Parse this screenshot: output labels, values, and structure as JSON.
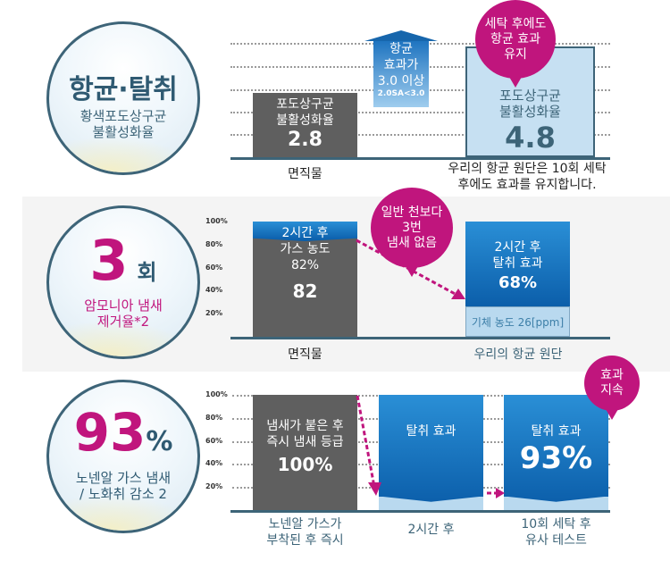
{
  "colors": {
    "accent": "#c0157d",
    "teal": "#3d6478",
    "gray_bar": "#5f5f5f",
    "blue_bar": "#1a7ac4",
    "light_blue": "#b9d9ef"
  },
  "sections": [
    {
      "circle": {
        "title": "항균·탈취",
        "subtitle_1": "황색포도상구균",
        "subtitle_2": "불활성화율"
      },
      "bubble": [
        "세탁 후에도",
        "항균 효과",
        "유지"
      ],
      "arrow": {
        "line1": "항균",
        "line2": "효과가",
        "line3": "3.0 이상",
        "line4": "2.0SA<3.0"
      },
      "caption_1": "우리의 항균 원단은 10회 세탁",
      "caption_2": "후에도 효과를 유지합니다."
    },
    {
      "circle": {
        "number": "3",
        "unit": "회",
        "subtitle_1": "암모니아 냄새",
        "subtitle_2": "제거율*2"
      },
      "bubble": [
        "일반 천보다",
        "3번",
        "냄새 없음"
      ]
    },
    {
      "circle": {
        "number": "93",
        "unit": "%",
        "subtitle_1": "노넨알 가스 냄새",
        "subtitle_2": "/ 노화취 감소 2"
      },
      "bubble": [
        "효과",
        "지속"
      ]
    }
  ],
  "chart_data": [
    {
      "type": "bar",
      "categories": [
        "면직물",
        "우리의 항균 원단"
      ],
      "values": [
        2.8,
        4.8
      ],
      "bar_text": [
        [
          "포도상구균",
          "불활성화율",
          "2.8"
        ],
        [
          "포도상구균",
          "불활성화율",
          "4.8"
        ]
      ]
    },
    {
      "type": "bar",
      "categories": [
        "면직물",
        "우리의 항균 원단"
      ],
      "yticks": [
        "100%",
        "80%",
        "60%",
        "40%",
        "20%"
      ],
      "ylim": [
        0,
        100
      ],
      "values": [
        82,
        26
      ],
      "bar_text": [
        [
          "2시간 후",
          "가스 농도",
          "82%",
          "82"
        ],
        [
          "2시간 후",
          "탈취 효과",
          "68%",
          "기체 농도 26[ppm]"
        ]
      ]
    },
    {
      "type": "bar",
      "categories": [
        "노넨알 가스가 부착된 후 즉시",
        "2시간 후",
        "10회 세탁 후 유사 테스트"
      ],
      "category_lines": [
        [
          "노넨알 가스가",
          "부착된 후 즉시"
        ],
        [
          "2시간 후"
        ],
        [
          "10회 세탁 후",
          "유사 테스트"
        ]
      ],
      "yticks": [
        "100%",
        "80%",
        "60%",
        "40%",
        "20%"
      ],
      "ylim": [
        0,
        100
      ],
      "values": [
        100,
        12,
        12
      ],
      "bar_text": [
        [
          "냄새가 붙은 후",
          "즉시 냄새 등급",
          "100%"
        ],
        [
          "탈취 효과"
        ],
        [
          "탈취 효과",
          "93%"
        ]
      ]
    }
  ]
}
